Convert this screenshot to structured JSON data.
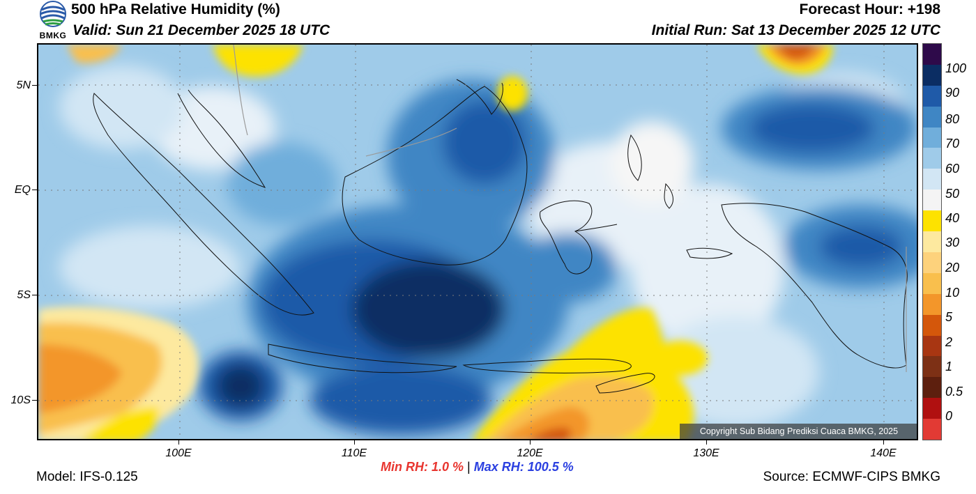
{
  "header": {
    "title": "500 hPa Relative Humidity (%)",
    "valid": "Valid: Sun 21 December 2025 18 UTC",
    "forecast_hour": "Forecast Hour: +198",
    "initial_run": "Initial Run: Sat 13 December 2025 12 UTC"
  },
  "logo": {
    "text": "BMKG",
    "icon": "bmkg-logo-icon"
  },
  "map": {
    "lat_labels": [
      "5N",
      "EQ",
      "5S",
      "10S"
    ],
    "lon_labels": [
      "100E",
      "110E",
      "120E",
      "130E",
      "140E"
    ],
    "copyright": "Copyright Sub Bidang Prediksi Cuaca BMKG, 2025"
  },
  "colorbar": {
    "labels": [
      "100",
      "90",
      "80",
      "70",
      "60",
      "50",
      "40",
      "30",
      "20",
      "10",
      "5",
      "2",
      "1",
      "0.5",
      "0"
    ],
    "colors": [
      "#2e0a4a",
      "#0b2d63",
      "#1f5aa8",
      "#3f86c4",
      "#70aedb",
      "#9fcbe9",
      "#d2e6f4",
      "#f4f4f4",
      "#fde200",
      "#fde99f",
      "#fdd27c",
      "#f9bf4d",
      "#f3962a",
      "#d4570b",
      "#a83612",
      "#7d3015",
      "#5d1f0e",
      "#b01010",
      "#e23a34"
    ]
  },
  "footer": {
    "min_rh": "Min RH:   1.0 %",
    "separator": "|",
    "max_rh": "Max RH: 100.5 %",
    "model": "Model: IFS-0.125",
    "source": "Source: ECMWF-CIPS BMKG"
  }
}
